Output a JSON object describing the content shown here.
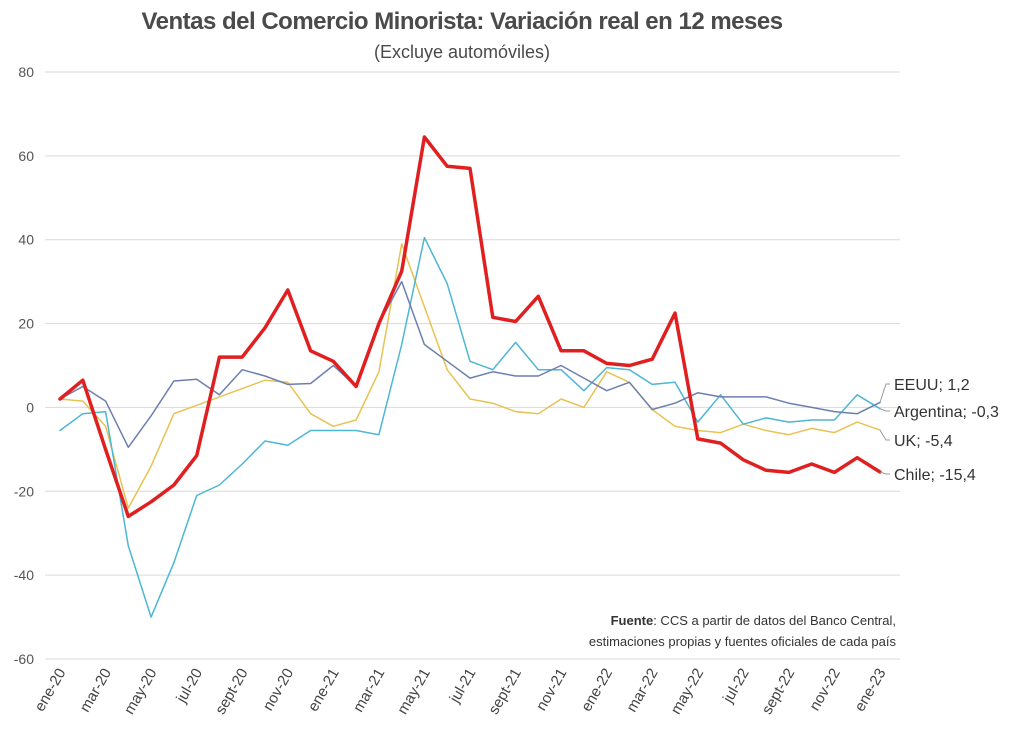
{
  "chart_data": {
    "type": "line",
    "title": "Ventas del Comercio Minorista: Variación real en 12 meses",
    "subtitle": "(Excluye automóviles)",
    "ylim": [
      -60,
      80
    ],
    "yticks": [
      -60,
      -40,
      -20,
      0,
      20,
      40,
      60,
      80
    ],
    "grid": true,
    "x": [
      "ene-20",
      "feb-20",
      "mar-20",
      "abr-20",
      "may-20",
      "jun-20",
      "jul-20",
      "ago-20",
      "sept-20",
      "oct-20",
      "nov-20",
      "dic-20",
      "ene-21",
      "feb-21",
      "mar-21",
      "abr-21",
      "may-21",
      "jun-21",
      "jul-21",
      "ago-21",
      "sept-21",
      "oct-21",
      "nov-21",
      "dic-21",
      "ene-22",
      "feb-22",
      "mar-22",
      "abr-22",
      "may-22",
      "jun-22",
      "jul-22",
      "ago-22",
      "sept-22",
      "oct-22",
      "nov-22",
      "dic-22",
      "ene-23"
    ],
    "x_tick_labels": [
      "ene-20",
      "mar-20",
      "may-20",
      "jul-20",
      "sept-20",
      "nov-20",
      "ene-21",
      "mar-21",
      "may-21",
      "jul-21",
      "sept-21",
      "nov-21",
      "ene-22",
      "mar-22",
      "may-22",
      "jul-22",
      "sept-22",
      "nov-22",
      "ene-23"
    ],
    "series": [
      {
        "name": "EEUU",
        "end_label": "EEUU; 1,2",
        "color": "#6b7faf",
        "values": [
          2.0,
          5.0,
          1.5,
          -9.5,
          -2,
          6.3,
          6.7,
          3.0,
          9.0,
          7.5,
          5.5,
          5.7,
          10.0,
          5.0,
          20.0,
          30.0,
          15.0,
          11.0,
          7.0,
          8.5,
          7.5,
          7.5,
          10.0,
          7.0,
          4.0,
          6.0,
          -0.5,
          1.0,
          3.5,
          2.5,
          2.5,
          2.5,
          1.0,
          0.0,
          -1.0,
          -1.5,
          1.2
        ]
      },
      {
        "name": "Argentina",
        "end_label": "Argentina; -0,3",
        "color": "#4db6d4",
        "values": [
          -5.5,
          -1.5,
          -1.0,
          -33.0,
          -50.0,
          -37.0,
          -21.0,
          -18.5,
          -13.5,
          -8.0,
          -9.0,
          -5.5,
          -5.5,
          -5.5,
          -6.5,
          15.0,
          40.5,
          29.5,
          11.0,
          9.0,
          15.5,
          9.0,
          9.0,
          4.0,
          9.5,
          9.0,
          5.5,
          6.0,
          -3.5,
          3.0,
          -4.0,
          -2.5,
          -3.5,
          -3.0,
          -3.0,
          3.0,
          -0.3
        ]
      },
      {
        "name": "UK",
        "end_label": "UK; -5,4",
        "color": "#e8c252",
        "values": [
          2.0,
          1.5,
          -4.5,
          -24.0,
          -14.0,
          -1.5,
          0.5,
          2.5,
          4.5,
          6.5,
          6.0,
          -1.5,
          -4.5,
          -3.0,
          8.5,
          39.0,
          24.0,
          9.0,
          2.0,
          1.0,
          -1.0,
          -1.5,
          2.0,
          0.0,
          8.5,
          6.0,
          -0.5,
          -4.5,
          -5.5,
          -6.0,
          -4.0,
          -5.5,
          -6.5,
          -5.0,
          -6.0,
          -3.5,
          -5.4
        ]
      },
      {
        "name": "Chile",
        "end_label": "Chile; -15,4",
        "color": "#e02020",
        "values": [
          2.0,
          6.5,
          -10.0,
          -26.0,
          -22.5,
          -18.5,
          -11.5,
          12.0,
          12.0,
          19.0,
          28.0,
          13.5,
          11.0,
          5.0,
          20.0,
          32.5,
          64.5,
          57.5,
          57.0,
          21.5,
          20.5,
          26.5,
          13.5,
          13.5,
          10.5,
          10.0,
          11.5,
          22.5,
          -7.5,
          -8.5,
          -12.5,
          -15.0,
          -15.5,
          -13.5,
          -15.5,
          -12.0,
          -15.4
        ]
      }
    ],
    "source_label": "Fuente",
    "source_line1": ": CCS a partir de datos del Banco Central,",
    "source_line2": "estimaciones propias y fuentes oficiales de cada país"
  }
}
